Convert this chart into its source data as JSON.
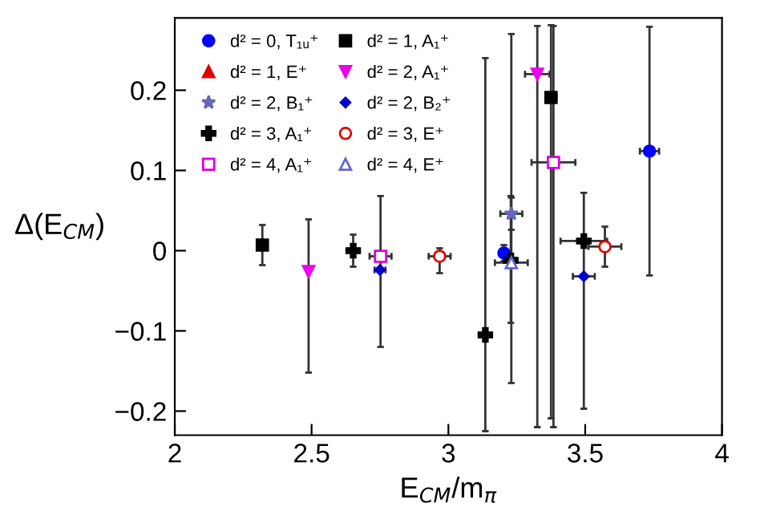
{
  "chart_data": {
    "type": "scatter",
    "xlabel": "E$_{CM}$/m$_{π}$",
    "ylabel": "Δ(E$_{CM}$)",
    "xlim": [
      2,
      4
    ],
    "xticks": [
      2,
      2.5,
      3,
      3.5,
      4
    ],
    "ylim": [
      -0.23,
      0.29
    ],
    "yticks": [
      {
        "value": -0.2,
        "label": "−0.2"
      },
      {
        "value": -0.1,
        "label": "−0.1"
      },
      0,
      0.1,
      0.2
    ],
    "legend": "top left",
    "series": [
      {
        "name": "d² = 0, T₁ᵤ⁺",
        "color": "#0000ff",
        "marker": "circle",
        "x": [
          3.735,
          3.203
        ],
        "values": [
          0.124,
          -0.003
        ],
        "errors": [
          0.155,
          0.01
        ],
        "xerrors": [
          0.035,
          0.01
        ]
      },
      {
        "name": "d² = 1, A₁⁺",
        "color": "#000000",
        "marker": "square",
        "x": [
          2.32,
          3.375
        ],
        "values": [
          0.007,
          0.191
        ],
        "errors": [
          0.025,
          [
            -0.209,
            0.281
          ]
        ],
        "xerrors": [
          null,
          0.02
        ]
      },
      {
        "name": "d² = 1, E⁺",
        "color": "#dd0000",
        "marker": "triangle",
        "x": [
          null
        ],
        "values": [
          null
        ]
      },
      {
        "name": "d² = 2, A₁⁺",
        "color": "#ee00ee",
        "marker": "triangle_down",
        "x": [
          2.489,
          3.325
        ],
        "values": [
          -0.026,
          0.22
        ],
        "errors": [
          [
            -0.152,
            0.039
          ],
          [
            -0.22,
            0.28
          ]
        ],
        "xerrors": [
          null,
          0.045
        ]
      },
      {
        "name": "d² = 2, B₁⁺",
        "color": "#6666bb",
        "marker": "star",
        "x": [
          3.23
        ],
        "values": [
          0.046
        ],
        "errors": [
          0.02
        ],
        "xerrors": [
          0.04
        ]
      },
      {
        "name": "d² = 2, B₂⁺",
        "color": "#0000cc",
        "marker": "diamond",
        "x": [
          2.75,
          3.495
        ],
        "values": [
          -0.024,
          -0.032
        ],
        "xerrors": [
          0.02,
          0.04
        ]
      },
      {
        "name": "d² = 3, A₁⁺",
        "color": "#000000",
        "marker": "cross",
        "x": [
          2.652,
          3.135,
          3.495,
          3.228
        ],
        "values": [
          0.0,
          -0.105,
          0.012,
          -0.012
        ],
        "errors": [
          0.02,
          [
            -0.225,
            0.24
          ],
          [
            -0.197,
            0.072
          ],
          [
            -0.09,
            0.068
          ]
        ],
        "xerrors": [
          0.02,
          0.02,
          0.085,
          0.02
        ]
      },
      {
        "name": "d² = 3, E⁺",
        "color": "#dd0000",
        "marker": "circle_open",
        "x": [
          2.968,
          3.572
        ],
        "values": [
          -0.007,
          0.005
        ],
        "errors": [
          [
            -0.028,
            0.003
          ],
          0.025
        ],
        "xerrors": [
          0.04,
          0.06
        ]
      },
      {
        "name": "d² = 4, A₁⁺",
        "color": "#dd00dd",
        "marker": "square_open",
        "x": [
          2.752,
          3.384
        ],
        "values": [
          -0.007,
          0.11
        ],
        "errors": [
          [
            -0.12,
            0.068
          ],
          [
            -0.22,
            0.28
          ]
        ],
        "xerrors": [
          0.04,
          0.08
        ]
      },
      {
        "name": "d² = 4, E⁺",
        "color": "#6666cc",
        "marker": "triangle_open",
        "x": [
          3.23
        ],
        "values": [
          -0.015
        ],
        "errors": [
          [
            -0.165,
            0.27
          ]
        ],
        "xerrors": [
          0.06
        ]
      }
    ]
  }
}
